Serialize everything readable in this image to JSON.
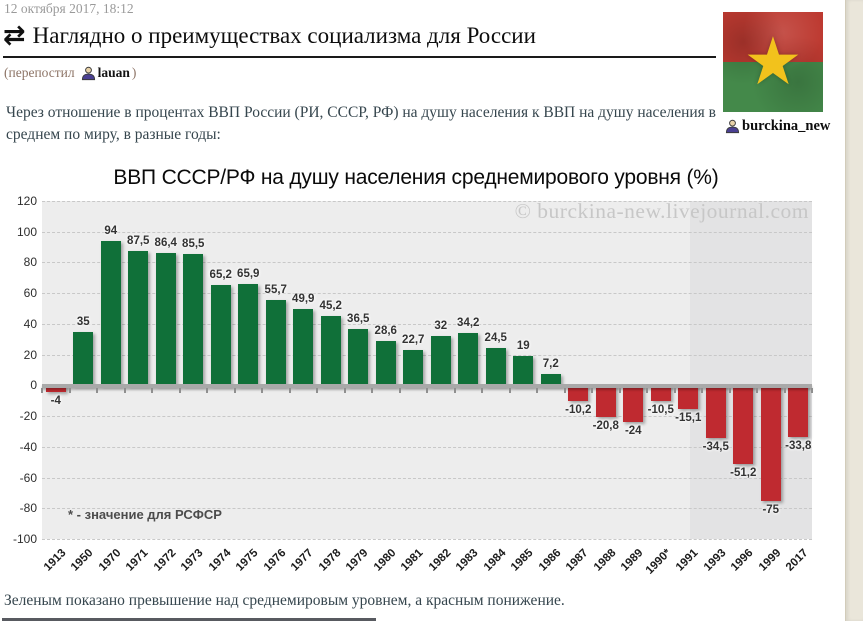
{
  "post": {
    "timestamp": "12 октября 2017, 18:12",
    "title": "Наглядно о преимуществах социализма для России",
    "repost_prefix": "(перепостил",
    "repost_user": "lauan",
    "repost_close": ")",
    "author": "burckina_new",
    "intro_text": "Через отношение в процентах ВВП России (РИ, СССР, РФ) на душу населения к ВВП на душу населения в среднем по миру, в разные годы:",
    "footer_text": "Зеленым показано превышение над среднемировым уровнем, а красным понижение."
  },
  "icons": {
    "repost_glyph": "⇄",
    "star_glyph": "★"
  },
  "colors": {
    "positive_bar": "#107039",
    "negative_bar": "#bf2a30",
    "plot_bg": "#ededed",
    "highlight_bg": "#e3e3e4",
    "flag_red": "#bd3a31",
    "flag_green": "#44894a",
    "flag_star": "#f2c21c"
  },
  "chart_data": {
    "type": "bar",
    "title": "ВВП СССР/РФ на душу населения среднемирового уровня (%)",
    "watermark": "© burckina-new.livejournal.com",
    "footnote": "* - значение для РСФСР",
    "xlabel": "",
    "ylabel": "",
    "ylim": [
      -100,
      120
    ],
    "ytick_step": 20,
    "grid": true,
    "legend_position": "none",
    "highlight_from": "1993",
    "categories": [
      "1913",
      "1950",
      "1970",
      "1971",
      "1972",
      "1973",
      "1974",
      "1975",
      "1976",
      "1977",
      "1978",
      "1979",
      "1980",
      "1981",
      "1982",
      "1983",
      "1984",
      "1985",
      "1986",
      "1987",
      "1988",
      "1989",
      "1990*",
      "1991",
      "1993",
      "1996",
      "1999",
      "2017"
    ],
    "values": [
      -4,
      35,
      94,
      87.5,
      86.4,
      85.5,
      65.2,
      65.9,
      55.7,
      49.9,
      45.2,
      36.5,
      28.6,
      22.7,
      32,
      34.2,
      24.5,
      19,
      7.2,
      -10.2,
      -20.8,
      -24,
      -10.5,
      -15.1,
      -34.5,
      -51.2,
      -75,
      -33.8
    ],
    "value_labels": [
      "-4",
      "35",
      "94",
      "87,5",
      "86,4",
      "85,5",
      "65,2",
      "65,9",
      "55,7",
      "49,9",
      "45,2",
      "36,5",
      "28,6",
      "22,7",
      "32",
      "34,2",
      "24,5",
      "19",
      "7,2",
      "-10,2",
      "-20,8",
      "-24",
      "-10,5",
      "-15,1",
      "-34,5",
      "-51,2",
      "-75",
      "-33,8"
    ]
  }
}
